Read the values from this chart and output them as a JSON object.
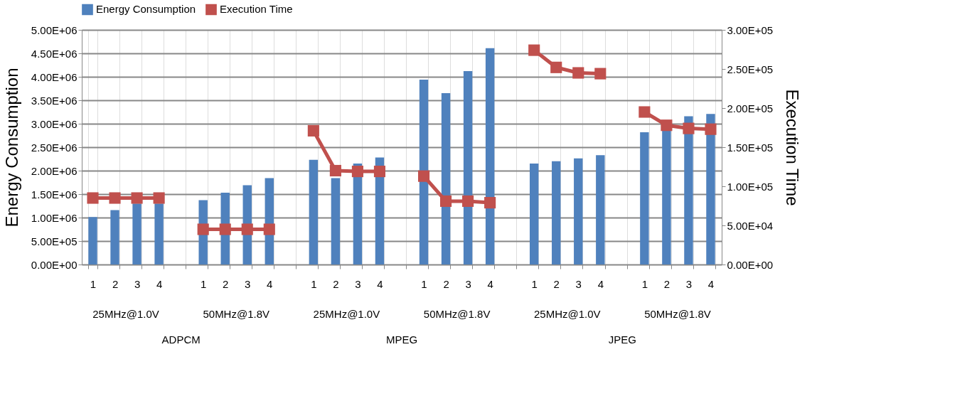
{
  "chart_data": {
    "type": "bar",
    "ylabel": "Energy Consumption",
    "y2label": "Execution Time",
    "categories": [
      "1",
      "2",
      "3",
      "4",
      null,
      "1",
      "2",
      "3",
      "4",
      null,
      "1",
      "2",
      "3",
      "4",
      null,
      "1",
      "2",
      "3",
      "4",
      null,
      "1",
      "2",
      "3",
      "4",
      null,
      "1",
      "2",
      "3",
      "4"
    ],
    "annotations": [
      "25MHz@1.0V",
      "50MHz@1.8V",
      "25MHz@1.0V",
      "50MHz@1.8V",
      "25MHz@1.0V",
      "50MHz@1.8V",
      "ADPCM",
      "MPEG",
      "JPEG"
    ],
    "series": [
      {
        "name": "Energy Consumption",
        "color": "#4f81bd",
        "values": [
          1010000,
          1160000,
          1300000,
          1300000,
          null,
          1370000,
          1530000,
          1690000,
          1840000,
          null,
          2230000,
          1840000,
          2150000,
          2280000,
          null,
          3940000,
          3650000,
          4120000,
          4610000,
          null,
          2150000,
          2200000,
          2260000,
          2330000,
          null,
          2820000,
          2870000,
          3160000,
          3210000
        ]
      },
      {
        "name": "Execution Time",
        "color": "#c0504d",
        "type": "line",
        "axis": "y2",
        "marker": "square",
        "values": [
          85000,
          85000,
          85000,
          85000,
          null,
          45000,
          45000,
          45000,
          45000,
          null,
          171000,
          120000,
          119000,
          119000,
          null,
          113000,
          81000,
          81000,
          79000,
          null,
          274000,
          252000,
          245000,
          244000,
          null,
          195000,
          178000,
          174000,
          173000
        ]
      }
    ],
    "ylim": [
      0,
      5000000
    ],
    "yticks": [
      {
        "value": 0,
        "label": "0.00E+00"
      },
      {
        "value": 500000,
        "label": "5.00E+05"
      },
      {
        "value": 1000000,
        "label": "1.00E+06"
      },
      {
        "value": 1500000,
        "label": "1.50E+06"
      },
      {
        "value": 2000000,
        "label": "2.00E+06"
      },
      {
        "value": 2500000,
        "label": "2.50E+06"
      },
      {
        "value": 3000000,
        "label": "3.00E+06"
      },
      {
        "value": 3500000,
        "label": "3.50E+06"
      },
      {
        "value": 4000000,
        "label": "4.00E+06"
      },
      {
        "value": 4500000,
        "label": "4.50E+06"
      },
      {
        "value": 5000000,
        "label": "5.00E+06"
      }
    ],
    "y2lim": [
      0,
      300000
    ],
    "y2ticks": [
      {
        "value": 0,
        "label": "0.00E+00"
      },
      {
        "value": 50000,
        "label": "5.00E+04"
      },
      {
        "value": 100000,
        "label": "1.00E+05"
      },
      {
        "value": 150000,
        "label": "1.50E+05"
      },
      {
        "value": 200000,
        "label": "2.00E+05"
      },
      {
        "value": 250000,
        "label": "2.50E+05"
      },
      {
        "value": 300000,
        "label": "3.00E+05"
      }
    ],
    "grid": true,
    "legend": "top"
  }
}
